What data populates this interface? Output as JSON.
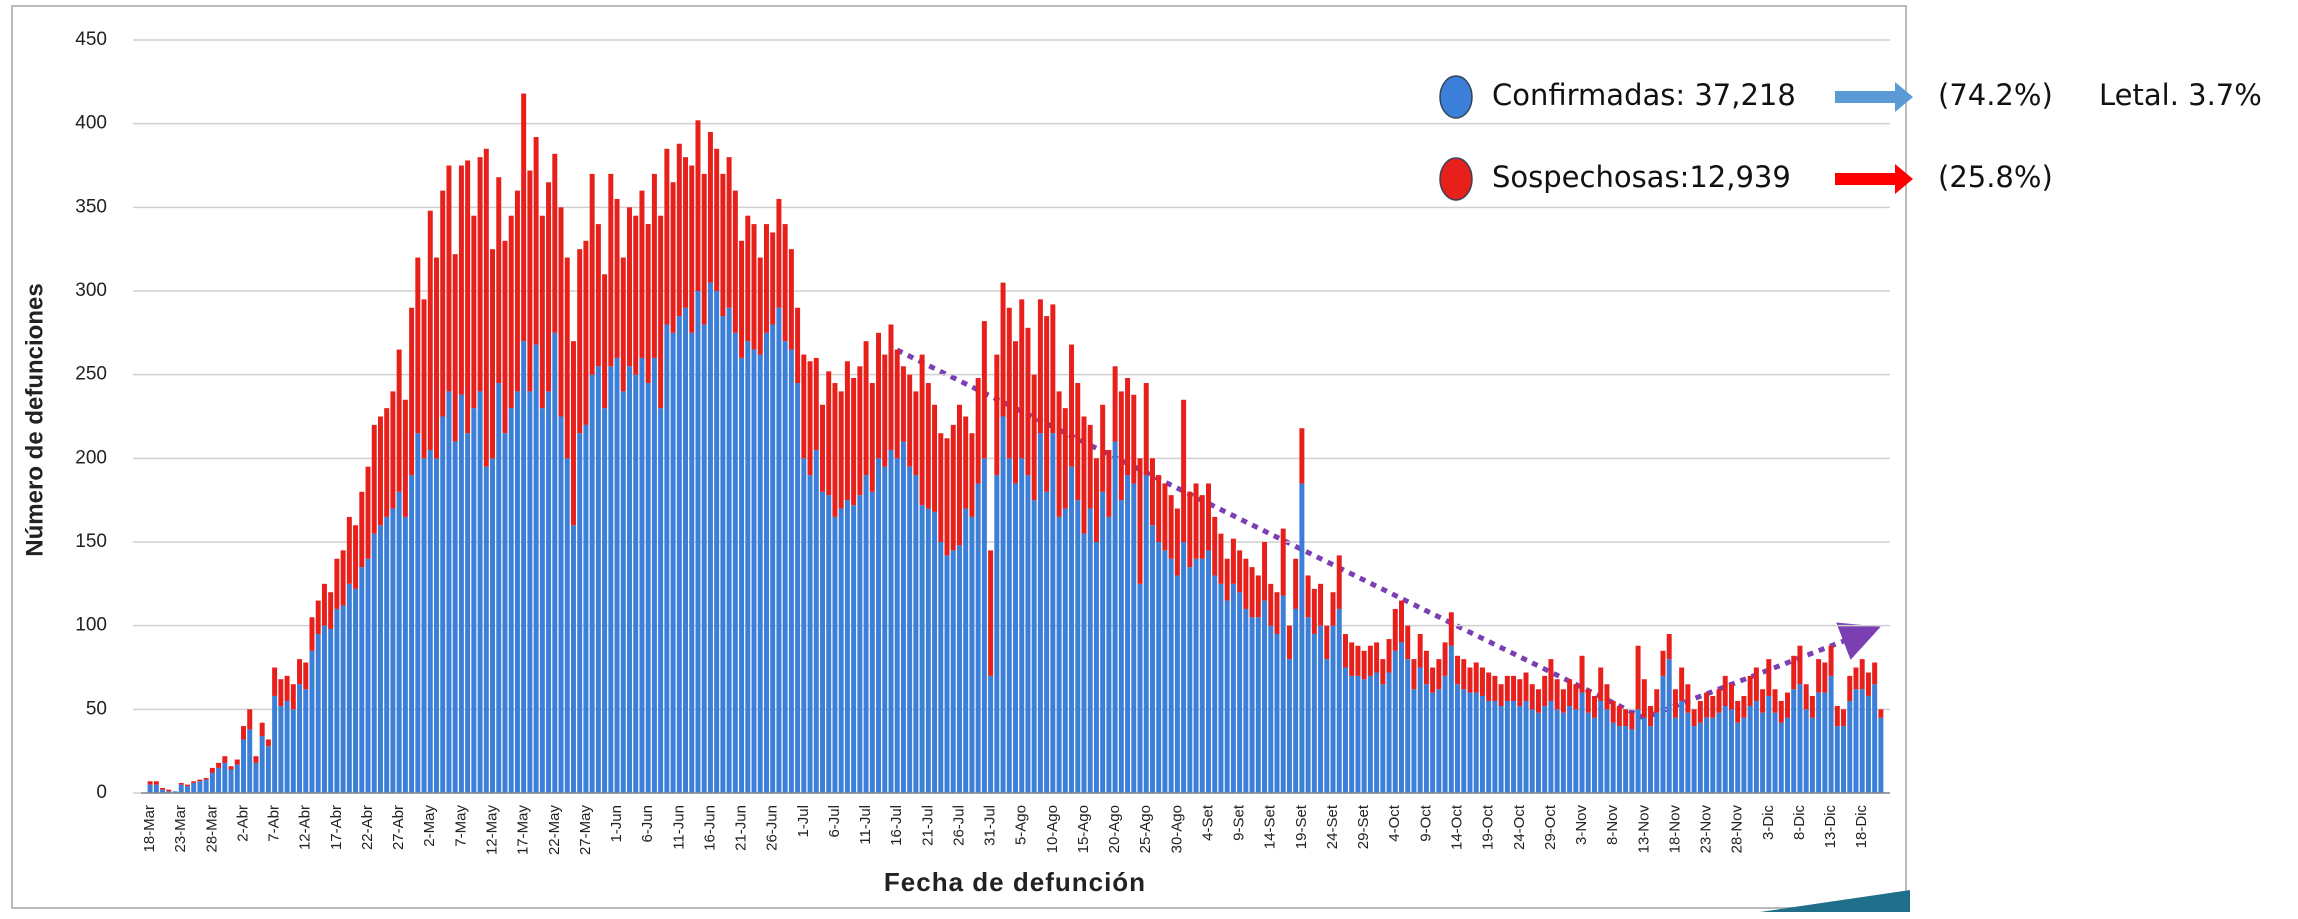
{
  "chart_data": {
    "type": "stacked_bar",
    "x_label": "Fecha de defunción",
    "y_label": "Número de defunciones",
    "annotations": [
      "(74.2%)",
      "Letal. 3.7%",
      "(25.8%)"
    ],
    "ylim": [
      0,
      450
    ],
    "yticks": [
      0,
      50,
      100,
      150,
      200,
      250,
      300,
      350,
      400,
      450
    ],
    "grid": true,
    "categories": [
      "18-Mar",
      null,
      null,
      null,
      null,
      "23-Mar",
      null,
      null,
      null,
      null,
      "28-Mar",
      null,
      null,
      null,
      null,
      "2-Abr",
      null,
      null,
      null,
      null,
      "7-Abr",
      null,
      null,
      null,
      null,
      "12-Abr",
      null,
      null,
      null,
      null,
      "17-Abr",
      null,
      null,
      null,
      null,
      "22-Abr",
      null,
      null,
      null,
      null,
      "27-Abr",
      null,
      null,
      null,
      null,
      "2-May",
      null,
      null,
      null,
      null,
      "7-May",
      null,
      null,
      null,
      null,
      "12-May",
      null,
      null,
      null,
      null,
      "17-May",
      null,
      null,
      null,
      null,
      "22-May",
      null,
      null,
      null,
      null,
      "27-May",
      null,
      null,
      null,
      null,
      "1-Jun",
      null,
      null,
      null,
      null,
      "6-Jun",
      null,
      null,
      null,
      null,
      "11-Jun",
      null,
      null,
      null,
      null,
      "16-Jun",
      null,
      null,
      null,
      null,
      "21-Jun",
      null,
      null,
      null,
      null,
      "26-Jun",
      null,
      null,
      null,
      null,
      "1-Jul",
      null,
      null,
      null,
      null,
      "6-Jul",
      null,
      null,
      null,
      null,
      "11-Jul",
      null,
      null,
      null,
      null,
      "16-Jul",
      null,
      null,
      null,
      null,
      "21-Jul",
      null,
      null,
      null,
      null,
      "26-Jul",
      null,
      null,
      null,
      null,
      "31-Jul",
      null,
      null,
      null,
      null,
      "5-Ago",
      null,
      null,
      null,
      null,
      "10-Ago",
      null,
      null,
      null,
      null,
      "15-Ago",
      null,
      null,
      null,
      null,
      "20-Ago",
      null,
      null,
      null,
      null,
      "25-Ago",
      null,
      null,
      null,
      null,
      "30-Ago",
      null,
      null,
      null,
      null,
      "4-Set",
      null,
      null,
      null,
      null,
      "9-Set",
      null,
      null,
      null,
      null,
      "14-Set",
      null,
      null,
      null,
      null,
      "19-Set",
      null,
      null,
      null,
      null,
      "24-Set",
      null,
      null,
      null,
      null,
      "29-Set",
      null,
      null,
      null,
      null,
      "4-Oct",
      null,
      null,
      null,
      null,
      "9-Oct",
      null,
      null,
      null,
      null,
      "14-Oct",
      null,
      null,
      null,
      null,
      "19-Oct",
      null,
      null,
      null,
      null,
      "24-Oct",
      null,
      null,
      null,
      null,
      "29-Oct",
      null,
      null,
      null,
      null,
      "3-Nov",
      null,
      null,
      null,
      null,
      "8-Nov",
      null,
      null,
      null,
      null,
      "13-Nov",
      null,
      null,
      null,
      null,
      "18-Nov",
      null,
      null,
      null,
      null,
      "23-Nov",
      null,
      null,
      null,
      null,
      "28-Nov",
      null,
      null,
      null,
      null,
      "3-Dic",
      null,
      null,
      null,
      null,
      "8-Dic",
      null,
      null,
      null,
      null,
      "13-Dic",
      null,
      null,
      null,
      null,
      "18-Dic",
      null,
      null,
      null
    ],
    "series": [
      {
        "name": "Confirmadas: 37,218",
        "color": "#3b7fd9",
        "values": [
          5,
          5,
          2,
          1,
          1,
          5,
          4,
          6,
          7,
          8,
          12,
          15,
          18,
          14,
          17,
          32,
          38,
          18,
          34,
          28,
          58,
          52,
          55,
          50,
          65,
          62,
          85,
          95,
          100,
          98,
          110,
          112,
          125,
          122,
          135,
          140,
          155,
          160,
          165,
          170,
          180,
          165,
          190,
          215,
          200,
          205,
          200,
          225,
          240,
          210,
          238,
          215,
          230,
          240,
          195,
          200,
          245,
          215,
          230,
          240,
          270,
          240,
          268,
          230,
          240,
          275,
          225,
          200,
          160,
          215,
          220,
          250,
          255,
          230,
          255,
          260,
          240,
          255,
          250,
          260,
          245,
          260,
          230,
          280,
          275,
          285,
          290,
          275,
          300,
          280,
          305,
          300,
          285,
          290,
          275,
          260,
          270,
          265,
          262,
          275,
          280,
          290,
          270,
          265,
          245,
          200,
          190,
          205,
          180,
          178,
          165,
          170,
          175,
          172,
          178,
          190,
          180,
          200,
          195,
          205,
          200,
          210,
          195,
          190,
          172,
          170,
          168,
          150,
          142,
          145,
          148,
          170,
          165,
          185,
          200,
          70,
          190,
          225,
          200,
          185,
          200,
          190,
          175,
          215,
          180,
          215,
          165,
          170,
          195,
          175,
          155,
          170,
          150,
          180,
          165,
          210,
          175,
          190,
          185,
          125,
          190,
          160,
          150,
          145,
          140,
          130,
          150,
          135,
          140,
          140,
          145,
          130,
          125,
          115,
          125,
          120,
          110,
          105,
          105,
          115,
          100,
          95,
          118,
          80,
          110,
          185,
          105,
          95,
          100,
          80,
          100,
          110,
          75,
          70,
          70,
          68,
          70,
          72,
          65,
          72,
          85,
          90,
          80,
          62,
          75,
          65,
          60,
          62,
          70,
          88,
          65,
          62,
          60,
          60,
          58,
          55,
          55,
          52,
          55,
          55,
          52,
          55,
          50,
          48,
          52,
          55,
          50,
          48,
          52,
          50,
          60,
          48,
          45,
          55,
          50,
          42,
          40,
          40,
          38,
          50,
          45,
          40,
          48,
          70,
          80,
          45,
          55,
          48,
          40,
          42,
          45,
          45,
          48,
          52,
          50,
          42,
          45,
          52,
          55,
          48,
          58,
          48,
          42,
          45,
          62,
          65,
          50,
          45,
          60,
          60,
          70,
          40,
          40,
          55,
          62,
          62,
          58,
          65,
          45
        ]
      },
      {
        "name": "Sospechosas:12,939",
        "color": "#e8201c",
        "values": [
          2,
          2,
          1,
          1,
          0,
          1,
          1,
          1,
          1,
          1,
          3,
          3,
          4,
          2,
          3,
          8,
          12,
          4,
          8,
          4,
          17,
          16,
          15,
          15,
          15,
          16,
          20,
          20,
          25,
          22,
          30,
          33,
          40,
          38,
          45,
          55,
          65,
          65,
          65,
          70,
          85,
          70,
          100,
          105,
          95,
          143,
          120,
          135,
          135,
          112,
          137,
          163,
          115,
          140,
          190,
          125,
          123,
          115,
          115,
          120,
          148,
          132,
          124,
          115,
          125,
          107,
          125,
          120,
          110,
          110,
          110,
          120,
          85,
          80,
          115,
          95,
          80,
          95,
          95,
          100,
          95,
          110,
          115,
          105,
          90,
          103,
          90,
          100,
          102,
          90,
          90,
          85,
          85,
          90,
          85,
          70,
          75,
          75,
          58,
          65,
          55,
          65,
          70,
          60,
          45,
          62,
          68,
          55,
          52,
          74,
          80,
          70,
          83,
          76,
          77,
          80,
          65,
          75,
          67,
          75,
          65,
          45,
          55,
          50,
          90,
          75,
          64,
          65,
          70,
          75,
          84,
          55,
          50,
          63,
          82,
          75,
          72,
          80,
          90,
          85,
          95,
          88,
          75,
          80,
          105,
          77,
          75,
          60,
          73,
          70,
          70,
          50,
          50,
          52,
          40,
          45,
          65,
          58,
          53,
          75,
          55,
          40,
          40,
          40,
          38,
          40,
          85,
          45,
          45,
          38,
          40,
          35,
          30,
          25,
          27,
          25,
          30,
          30,
          25,
          35,
          25,
          25,
          40,
          20,
          30,
          33,
          25,
          27,
          25,
          20,
          20,
          32,
          20,
          20,
          18,
          17,
          18,
          18,
          15,
          20,
          25,
          25,
          20,
          18,
          20,
          20,
          15,
          18,
          20,
          20,
          17,
          18,
          15,
          18,
          17,
          17,
          15,
          13,
          15,
          15,
          16,
          17,
          15,
          14,
          18,
          25,
          18,
          14,
          16,
          15,
          22,
          14,
          13,
          20,
          15,
          13,
          12,
          10,
          10,
          38,
          23,
          12,
          14,
          15,
          15,
          17,
          20,
          17,
          10,
          13,
          15,
          13,
          14,
          18,
          15,
          13,
          13,
          18,
          20,
          14,
          22,
          14,
          13,
          15,
          20,
          23,
          15,
          13,
          20,
          18,
          18,
          12,
          10,
          15,
          13,
          18,
          14,
          13,
          5
        ]
      }
    ]
  }
}
